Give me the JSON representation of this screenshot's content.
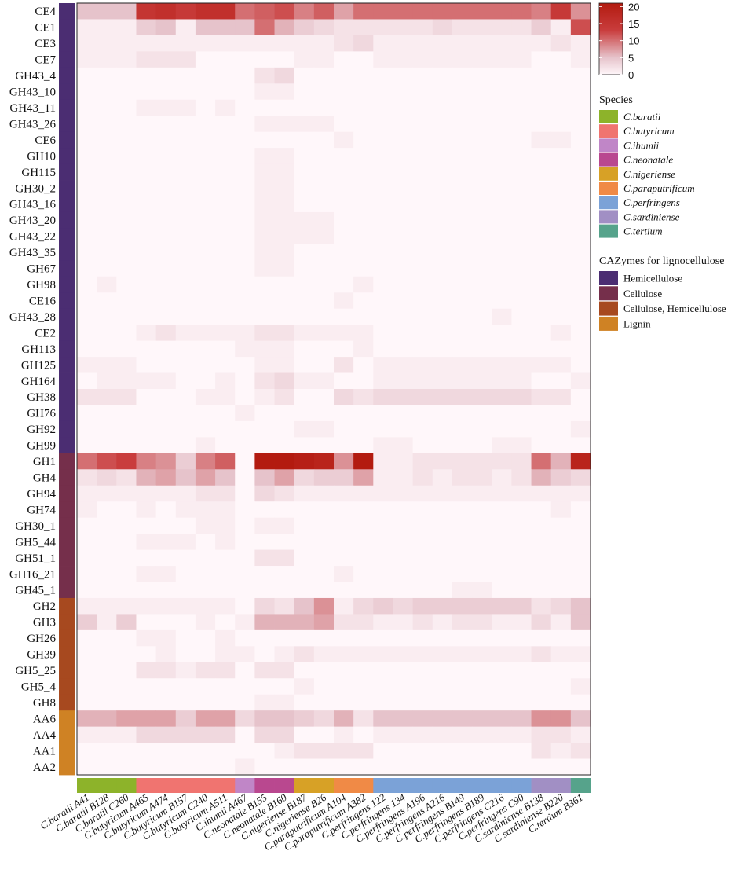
{
  "chart_data": {
    "type": "heatmap",
    "rows": [
      "CE4",
      "CE1",
      "CE3",
      "CE7",
      "GH43_4",
      "GH43_10",
      "GH43_11",
      "GH43_26",
      "CE6",
      "GH10",
      "GH115",
      "GH30_2",
      "GH43_16",
      "GH43_20",
      "GH43_22",
      "GH43_35",
      "GH67",
      "GH98",
      "CE16",
      "GH43_28",
      "CE2",
      "GH113",
      "GH125",
      "GH164",
      "GH38",
      "GH76",
      "GH92",
      "GH99",
      "GH1",
      "GH4",
      "GH94",
      "GH74",
      "GH30_1",
      "GH5_44",
      "GH51_1",
      "GH16_21",
      "GH45_1",
      "GH2",
      "GH3",
      "GH26",
      "GH39",
      "GH5_25",
      "GH5_4",
      "GH8",
      "AA6",
      "AA4",
      "AA1",
      "AA2"
    ],
    "columns": [
      "C.baratii A41",
      "C.baratii B128",
      "C.baratii C260",
      "C.butyricum A465",
      "C.butyricum A474",
      "C.butyricum B157",
      "C.butyricum C240",
      "C.butyricum A511",
      "C.ihumii A467",
      "C.neonatale B155",
      "C.neonatale B160",
      "C.nigeriense B187",
      "C.nigeriense B26",
      "C.paraputrificum A104",
      "C.paraputrificum A382",
      "C.perfringens 122",
      "C.perfringens 134",
      "C.perfringens A196",
      "C.perfringens A216",
      "C.perfringens B149",
      "C.perfringens B189",
      "C.perfringens C216",
      "C.perfringens C90",
      "C.sardiniense B138",
      "C.sardiniense B220",
      "C.tertium B361"
    ],
    "row_groups": [
      "Hemicellulose",
      "Hemicellulose",
      "Hemicellulose",
      "Hemicellulose",
      "Hemicellulose",
      "Hemicellulose",
      "Hemicellulose",
      "Hemicellulose",
      "Hemicellulose",
      "Hemicellulose",
      "Hemicellulose",
      "Hemicellulose",
      "Hemicellulose",
      "Hemicellulose",
      "Hemicellulose",
      "Hemicellulose",
      "Hemicellulose",
      "Hemicellulose",
      "Hemicellulose",
      "Hemicellulose",
      "Hemicellulose",
      "Hemicellulose",
      "Hemicellulose",
      "Hemicellulose",
      "Hemicellulose",
      "Hemicellulose",
      "Hemicellulose",
      "Hemicellulose",
      "Cellulose",
      "Cellulose",
      "Cellulose",
      "Cellulose",
      "Cellulose",
      "Cellulose",
      "Cellulose",
      "Cellulose",
      "Cellulose",
      "Cellulose, Hemicellulose",
      "Cellulose, Hemicellulose",
      "Cellulose, Hemicellulose",
      "Cellulose, Hemicellulose",
      "Cellulose, Hemicellulose",
      "Cellulose, Hemicellulose",
      "Cellulose, Hemicellulose",
      "Lignin",
      "Lignin",
      "Lignin",
      "Lignin"
    ],
    "column_species": [
      "C.baratii",
      "C.baratii",
      "C.baratii",
      "C.butyricum",
      "C.butyricum",
      "C.butyricum",
      "C.butyricum",
      "C.butyricum",
      "C.ihumii",
      "C.neonatale",
      "C.neonatale",
      "C.nigeriense",
      "C.nigeriense",
      "C.paraputrificum",
      "C.paraputrificum",
      "C.perfringens",
      "C.perfringens",
      "C.perfringens",
      "C.perfringens",
      "C.perfringens",
      "C.perfringens",
      "C.perfringens",
      "C.perfringens",
      "C.sardiniense",
      "C.sardiniense",
      "C.tertium"
    ],
    "values": [
      [
        5,
        5,
        5,
        15,
        16,
        14,
        16,
        16,
        10,
        11,
        12,
        9,
        11,
        7,
        10,
        10,
        10,
        10,
        10,
        10,
        10,
        10,
        10,
        9,
        14,
        8
      ],
      [
        1,
        1,
        1,
        4,
        5,
        1,
        5,
        5,
        5,
        10,
        6,
        4,
        3,
        2,
        2,
        2,
        2,
        2,
        3,
        2,
        2,
        2,
        2,
        4,
        1,
        12
      ],
      [
        1,
        1,
        1,
        1,
        1,
        1,
        1,
        1,
        1,
        1,
        1,
        1,
        1,
        2,
        3,
        1,
        1,
        1,
        1,
        1,
        1,
        1,
        1,
        1,
        2,
        1
      ],
      [
        1,
        1,
        1,
        2,
        2,
        2,
        0,
        0,
        0,
        0,
        0,
        1,
        1,
        0,
        0,
        1,
        1,
        1,
        1,
        1,
        1,
        1,
        1,
        0,
        0,
        1
      ],
      [
        0,
        0,
        0,
        0,
        0,
        0,
        0,
        0,
        0,
        2,
        3,
        0,
        0,
        0,
        0,
        0,
        0,
        0,
        0,
        0,
        0,
        0,
        0,
        0,
        0,
        0
      ],
      [
        0,
        0,
        0,
        0,
        0,
        0,
        0,
        0,
        0,
        1,
        1,
        0,
        0,
        0,
        0,
        0,
        0,
        0,
        0,
        0,
        0,
        0,
        0,
        0,
        0,
        0
      ],
      [
        0,
        0,
        0,
        1,
        1,
        1,
        0,
        1,
        0,
        0,
        0,
        0,
        0,
        0,
        0,
        0,
        0,
        0,
        0,
        0,
        0,
        0,
        0,
        0,
        0,
        0
      ],
      [
        0,
        0,
        0,
        0,
        0,
        0,
        0,
        0,
        0,
        1,
        1,
        1,
        1,
        0,
        0,
        0,
        0,
        0,
        0,
        0,
        0,
        0,
        0,
        0,
        0,
        0
      ],
      [
        0,
        0,
        0,
        0,
        0,
        0,
        0,
        0,
        0,
        0,
        0,
        0,
        0,
        1,
        0,
        0,
        0,
        0,
        0,
        0,
        0,
        0,
        0,
        1,
        1,
        0
      ],
      [
        0,
        0,
        0,
        0,
        0,
        0,
        0,
        0,
        0,
        1,
        1,
        0,
        0,
        0,
        0,
        0,
        0,
        0,
        0,
        0,
        0,
        0,
        0,
        0,
        0,
        0
      ],
      [
        0,
        0,
        0,
        0,
        0,
        0,
        0,
        0,
        0,
        1,
        1,
        0,
        0,
        0,
        0,
        0,
        0,
        0,
        0,
        0,
        0,
        0,
        0,
        0,
        0,
        0
      ],
      [
        0,
        0,
        0,
        0,
        0,
        0,
        0,
        0,
        0,
        1,
        1,
        0,
        0,
        0,
        0,
        0,
        0,
        0,
        0,
        0,
        0,
        0,
        0,
        0,
        0,
        0
      ],
      [
        0,
        0,
        0,
        0,
        0,
        0,
        0,
        0,
        0,
        1,
        1,
        0,
        0,
        0,
        0,
        0,
        0,
        0,
        0,
        0,
        0,
        0,
        0,
        0,
        0,
        0
      ],
      [
        0,
        0,
        0,
        0,
        0,
        0,
        0,
        0,
        0,
        1,
        1,
        1,
        1,
        0,
        0,
        0,
        0,
        0,
        0,
        0,
        0,
        0,
        0,
        0,
        0,
        0
      ],
      [
        0,
        0,
        0,
        0,
        0,
        0,
        0,
        0,
        0,
        1,
        1,
        1,
        1,
        0,
        0,
        0,
        0,
        0,
        0,
        0,
        0,
        0,
        0,
        0,
        0,
        0
      ],
      [
        0,
        0,
        0,
        0,
        0,
        0,
        0,
        0,
        0,
        1,
        1,
        0,
        0,
        0,
        0,
        0,
        0,
        0,
        0,
        0,
        0,
        0,
        0,
        0,
        0,
        0
      ],
      [
        0,
        0,
        0,
        0,
        0,
        0,
        0,
        0,
        0,
        1,
        1,
        0,
        0,
        0,
        0,
        0,
        0,
        0,
        0,
        0,
        0,
        0,
        0,
        0,
        0,
        0
      ],
      [
        0,
        1,
        0,
        0,
        0,
        0,
        0,
        0,
        0,
        0,
        0,
        0,
        0,
        0,
        1,
        0,
        0,
        0,
        0,
        0,
        0,
        0,
        0,
        0,
        0,
        0
      ],
      [
        0,
        0,
        0,
        0,
        0,
        0,
        0,
        0,
        0,
        0,
        0,
        0,
        0,
        1,
        0,
        0,
        0,
        0,
        0,
        0,
        0,
        0,
        0,
        0,
        0,
        0
      ],
      [
        0,
        0,
        0,
        0,
        0,
        0,
        0,
        0,
        0,
        0,
        0,
        0,
        0,
        0,
        0,
        0,
        0,
        0,
        0,
        0,
        0,
        1,
        0,
        0,
        0,
        0
      ],
      [
        0,
        0,
        0,
        1,
        2,
        1,
        1,
        1,
        1,
        2,
        2,
        1,
        1,
        1,
        1,
        0,
        0,
        0,
        0,
        0,
        0,
        0,
        0,
        0,
        1,
        0
      ],
      [
        0,
        0,
        0,
        0,
        0,
        0,
        0,
        0,
        1,
        1,
        1,
        0,
        0,
        0,
        1,
        0,
        0,
        0,
        0,
        0,
        0,
        0,
        0,
        0,
        0,
        0
      ],
      [
        1,
        1,
        1,
        0,
        0,
        0,
        0,
        0,
        0,
        1,
        1,
        0,
        0,
        2,
        0,
        1,
        1,
        1,
        1,
        1,
        1,
        1,
        1,
        1,
        1,
        0
      ],
      [
        0,
        1,
        1,
        1,
        1,
        0,
        0,
        1,
        0,
        2,
        3,
        1,
        1,
        0,
        0,
        1,
        1,
        1,
        1,
        1,
        1,
        1,
        1,
        0,
        0,
        1
      ],
      [
        2,
        2,
        2,
        0,
        0,
        0,
        1,
        1,
        0,
        1,
        2,
        0,
        0,
        3,
        2,
        3,
        3,
        3,
        3,
        3,
        3,
        3,
        3,
        2,
        2,
        0
      ],
      [
        0,
        0,
        0,
        0,
        0,
        0,
        0,
        0,
        1,
        0,
        0,
        0,
        0,
        0,
        0,
        0,
        0,
        0,
        0,
        0,
        0,
        0,
        0,
        0,
        0,
        0
      ],
      [
        0,
        0,
        0,
        0,
        0,
        0,
        0,
        0,
        0,
        0,
        0,
        1,
        1,
        0,
        0,
        0,
        0,
        0,
        0,
        0,
        0,
        0,
        0,
        0,
        0,
        1
      ],
      [
        0,
        0,
        0,
        0,
        0,
        0,
        1,
        0,
        0,
        0,
        0,
        0,
        0,
        0,
        0,
        1,
        1,
        0,
        0,
        0,
        0,
        1,
        1,
        0,
        0,
        0
      ],
      [
        10,
        12,
        13,
        9,
        8,
        4,
        9,
        11,
        0,
        21,
        21,
        20,
        19,
        8,
        22,
        1,
        1,
        2,
        2,
        2,
        2,
        2,
        2,
        10,
        6,
        19
      ],
      [
        2,
        3,
        2,
        6,
        7,
        5,
        7,
        5,
        0,
        5,
        7,
        3,
        4,
        4,
        7,
        1,
        1,
        2,
        1,
        2,
        2,
        1,
        2,
        6,
        4,
        3
      ],
      [
        1,
        1,
        1,
        1,
        1,
        1,
        2,
        2,
        0,
        3,
        2,
        1,
        1,
        1,
        1,
        1,
        1,
        1,
        1,
        1,
        1,
        1,
        1,
        1,
        1,
        1
      ],
      [
        1,
        0,
        0,
        1,
        0,
        1,
        1,
        1,
        0,
        0,
        0,
        0,
        0,
        0,
        0,
        0,
        0,
        0,
        0,
        0,
        0,
        0,
        0,
        0,
        1,
        0
      ],
      [
        0,
        0,
        0,
        0,
        0,
        0,
        1,
        1,
        0,
        1,
        1,
        0,
        0,
        0,
        0,
        0,
        0,
        0,
        0,
        0,
        0,
        0,
        0,
        0,
        0,
        0
      ],
      [
        0,
        0,
        0,
        1,
        1,
        1,
        0,
        1,
        0,
        0,
        0,
        0,
        0,
        0,
        0,
        0,
        0,
        0,
        0,
        0,
        0,
        0,
        0,
        0,
        0,
        0
      ],
      [
        0,
        0,
        0,
        0,
        0,
        0,
        0,
        0,
        0,
        2,
        2,
        0,
        0,
        0,
        0,
        0,
        0,
        0,
        0,
        0,
        0,
        0,
        0,
        0,
        0,
        0
      ],
      [
        0,
        0,
        0,
        1,
        1,
        0,
        0,
        0,
        0,
        0,
        0,
        0,
        0,
        1,
        0,
        0,
        0,
        0,
        0,
        0,
        0,
        0,
        0,
        0,
        0,
        0
      ],
      [
        0,
        0,
        0,
        0,
        0,
        0,
        0,
        0,
        0,
        0,
        0,
        0,
        0,
        0,
        0,
        0,
        0,
        0,
        0,
        1,
        1,
        0,
        0,
        0,
        0,
        0
      ],
      [
        1,
        1,
        1,
        1,
        1,
        1,
        1,
        1,
        0,
        3,
        2,
        5,
        8,
        1,
        3,
        4,
        3,
        4,
        4,
        4,
        4,
        4,
        4,
        2,
        3,
        5
      ],
      [
        4,
        1,
        4,
        0,
        0,
        0,
        1,
        0,
        1,
        6,
        6,
        6,
        7,
        2,
        2,
        1,
        1,
        2,
        1,
        2,
        2,
        1,
        1,
        3,
        1,
        5
      ],
      [
        0,
        0,
        0,
        1,
        1,
        0,
        0,
        1,
        0,
        0,
        0,
        0,
        0,
        0,
        0,
        0,
        0,
        0,
        0,
        0,
        0,
        0,
        0,
        0,
        0,
        0
      ],
      [
        0,
        0,
        0,
        0,
        1,
        0,
        0,
        1,
        1,
        0,
        1,
        2,
        1,
        1,
        1,
        1,
        1,
        1,
        1,
        1,
        1,
        1,
        1,
        2,
        1,
        1
      ],
      [
        0,
        0,
        0,
        2,
        2,
        1,
        2,
        2,
        0,
        2,
        2,
        0,
        0,
        0,
        0,
        0,
        0,
        0,
        0,
        0,
        0,
        0,
        0,
        0,
        0,
        0
      ],
      [
        0,
        0,
        0,
        0,
        0,
        0,
        0,
        0,
        0,
        0,
        0,
        1,
        0,
        0,
        0,
        0,
        0,
        0,
        0,
        0,
        0,
        0,
        0,
        0,
        0,
        1
      ],
      [
        0,
        0,
        0,
        0,
        0,
        0,
        0,
        0,
        0,
        1,
        1,
        0,
        0,
        0,
        0,
        0,
        0,
        0,
        0,
        0,
        0,
        0,
        0,
        0,
        0,
        0
      ],
      [
        6,
        6,
        7,
        7,
        7,
        4,
        7,
        7,
        3,
        5,
        5,
        4,
        3,
        6,
        2,
        5,
        5,
        5,
        5,
        5,
        5,
        5,
        5,
        8,
        8,
        5
      ],
      [
        1,
        1,
        1,
        3,
        3,
        3,
        3,
        3,
        0,
        3,
        3,
        0,
        0,
        1,
        0,
        1,
        1,
        1,
        1,
        1,
        1,
        1,
        1,
        2,
        2,
        1
      ],
      [
        0,
        0,
        0,
        0,
        0,
        0,
        0,
        0,
        0,
        0,
        1,
        2,
        2,
        2,
        2,
        0,
        0,
        0,
        0,
        0,
        0,
        0,
        0,
        2,
        1,
        2
      ],
      [
        0,
        0,
        0,
        0,
        0,
        0,
        0,
        0,
        1,
        0,
        0,
        0,
        0,
        0,
        0,
        0,
        0,
        0,
        0,
        0,
        0,
        0,
        0,
        0,
        0,
        0
      ]
    ],
    "color_scale": {
      "min": 0,
      "max": 21,
      "colors": [
        "#fff7fa",
        "#e6c3cb",
        "#c93d3d",
        "#b31b10"
      ],
      "ticks": [
        0,
        5,
        10,
        15,
        20
      ]
    },
    "species_legend": {
      "title": "Species",
      "items": [
        {
          "name": "C.baratii",
          "color": "#8db32a"
        },
        {
          "name": "C.butyricum",
          "color": "#f07470"
        },
        {
          "name": "C.ihumii",
          "color": "#c086c7"
        },
        {
          "name": "C.neonatale",
          "color": "#b9488f"
        },
        {
          "name": "C.nigeriense",
          "color": "#d7a126"
        },
        {
          "name": "C.paraputrificum",
          "color": "#f08a46"
        },
        {
          "name": "C.perfringens",
          "color": "#7ba2d7"
        },
        {
          "name": "C.sardiniense",
          "color": "#a18fc4"
        },
        {
          "name": "C.tertium",
          "color": "#56a38b"
        }
      ]
    },
    "cazyme_legend": {
      "title": "CAZymes for lignocellulose",
      "items": [
        {
          "name": "Hemicellulose",
          "color": "#4b2d72"
        },
        {
          "name": "Cellulose",
          "color": "#752f4b"
        },
        {
          "name": "Cellulose, Hemicellulose",
          "color": "#a7491f"
        },
        {
          "name": "Lignin",
          "color": "#cf8224"
        }
      ]
    }
  }
}
